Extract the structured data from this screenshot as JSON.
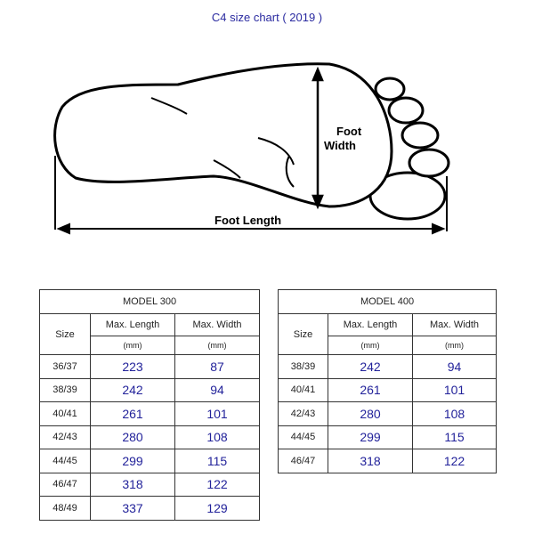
{
  "title": "C4 size chart ( 2019 )",
  "diagram": {
    "width_label_1": "Foot",
    "width_label_2": "Width",
    "length_label": "Foot Length"
  },
  "tables": [
    {
      "model": "MODEL 300",
      "size_header": "Size",
      "length_header": "Max. Length",
      "width_header": "Max. Width",
      "unit": "(mm)",
      "rows": [
        [
          "36/37",
          "223",
          "87"
        ],
        [
          "38/39",
          "242",
          "94"
        ],
        [
          "40/41",
          "261",
          "101"
        ],
        [
          "42/43",
          "280",
          "108"
        ],
        [
          "44/45",
          "299",
          "115"
        ],
        [
          "46/47",
          "318",
          "122"
        ],
        [
          "48/49",
          "337",
          "129"
        ]
      ]
    },
    {
      "model": "MODEL 400",
      "size_header": "Size",
      "length_header": "Max. Length",
      "width_header": "Max. Width",
      "unit": "(mm)",
      "rows": [
        [
          "38/39",
          "242",
          "94"
        ],
        [
          "40/41",
          "261",
          "101"
        ],
        [
          "42/43",
          "280",
          "108"
        ],
        [
          "44/45",
          "299",
          "115"
        ],
        [
          "46/47",
          "318",
          "122"
        ]
      ]
    }
  ]
}
